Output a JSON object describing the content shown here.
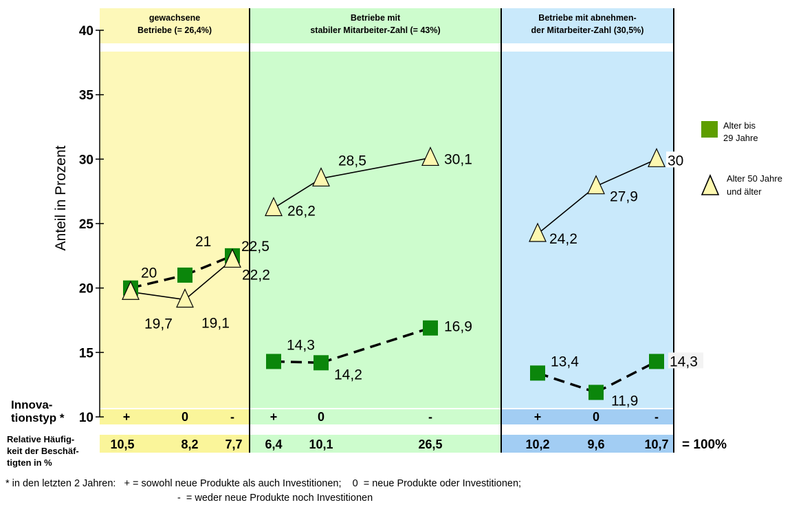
{
  "chart_data": {
    "type": "line",
    "ylabel": "Anteil in Prozent",
    "ylim": [
      10,
      40
    ],
    "yticks": [
      10,
      15,
      20,
      25,
      30,
      35,
      40
    ],
    "grid": false,
    "legend_position": "right",
    "groups": [
      {
        "title_line1": "gewachsene",
        "title_line2": "Betriebe (= 26,4%)",
        "color": "#fdf8b9",
        "row_color": "#faf59a"
      },
      {
        "title_line1": "Betriebe mit",
        "title_line2": "stabiler Mitarbeiter-Zahl (= 43%)",
        "color": "#cdfccd",
        "row_color": "#cdfccd"
      },
      {
        "title_line1": "Betriebe mit abnehmen-",
        "title_line2": "der Mitarbeiter-Zahl (30,5%)",
        "color": "#c9e9fb",
        "row_color": "#a2cdf3"
      }
    ],
    "categories": [
      {
        "group": 0,
        "innovation": "+",
        "freq": "10,5"
      },
      {
        "group": 0,
        "innovation": "0",
        "freq": "8,2"
      },
      {
        "group": 0,
        "innovation": "-",
        "freq": "7,7"
      },
      {
        "group": 1,
        "innovation": "+",
        "freq": "6,4"
      },
      {
        "group": 1,
        "innovation": "0",
        "freq": "10,1"
      },
      {
        "group": 1,
        "innovation": "-",
        "freq": "26,5"
      },
      {
        "group": 2,
        "innovation": "+",
        "freq": "10,2"
      },
      {
        "group": 2,
        "innovation": "0",
        "freq": "9,6"
      },
      {
        "group": 2,
        "innovation": "-",
        "freq": "10,7"
      }
    ],
    "series": [
      {
        "name": "Alter bis 29 Jahre",
        "marker": "square",
        "color": "#0b860b",
        "values": [
          20,
          21,
          22.5,
          14.3,
          14.2,
          16.9,
          13.4,
          11.9,
          14.3
        ],
        "labels": [
          "20",
          "21",
          "22,5",
          "14,3",
          "14,2",
          "16,9",
          "13,4",
          "11,9",
          "14,3"
        ]
      },
      {
        "name": "Alter 50 Jahre und älter",
        "marker": "triangle",
        "color": "#fdf8b0",
        "values": [
          19.7,
          19.1,
          22.2,
          26.2,
          28.5,
          30.1,
          24.2,
          27.9,
          30
        ],
        "labels": [
          "19,7",
          "19,1",
          "22,2",
          "26,2",
          "28,5",
          "30,1",
          "24,2",
          "27,9",
          "30"
        ]
      }
    ],
    "legend": [
      {
        "line1": "Alter bis",
        "line2": "29 Jahre"
      },
      {
        "line1": "Alter 50 Jahre",
        "line2": "und älter"
      }
    ],
    "row_labels": {
      "innovation_line1": "Innova-",
      "innovation_line2": "tionstyp *",
      "freq_line1": "Relative Häufig-",
      "freq_line2": "keit der Beschäf-",
      "freq_line3": "tigten in %"
    },
    "total_label": "= 100%"
  },
  "footnote_line1": "* in den letzten 2 Jahren:   + = sowohl neue Produkte als auch Investitionen;    0  = neue Produkte oder Investitionen;",
  "footnote_line2": "-  = weder neue Produkte noch Investitionen"
}
